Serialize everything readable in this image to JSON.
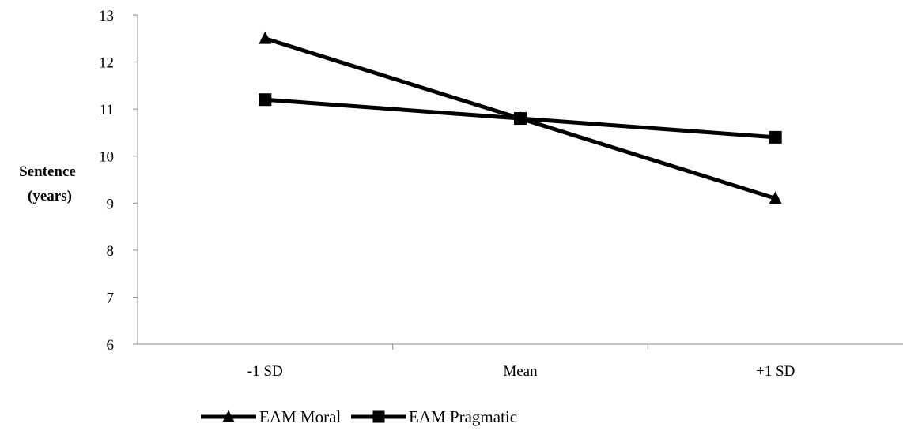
{
  "chart_data": {
    "type": "line",
    "title": "",
    "xlabel": "",
    "ylabel": [
      "Sentence",
      "(years)"
    ],
    "categories": [
      "-1 SD",
      "Mean",
      "+1 SD"
    ],
    "ylim": [
      6,
      13
    ],
    "yticks": [
      6,
      7,
      8,
      9,
      10,
      11,
      12,
      13
    ],
    "grid": false,
    "legend_position": "bottom",
    "series": [
      {
        "name": "EAM Moral",
        "marker": "triangle",
        "color": "#000000",
        "values": [
          12.5,
          10.8,
          9.1
        ]
      },
      {
        "name": "EAM Pragmatic",
        "marker": "square",
        "color": "#000000",
        "values": [
          11.2,
          10.8,
          10.4
        ]
      }
    ]
  }
}
